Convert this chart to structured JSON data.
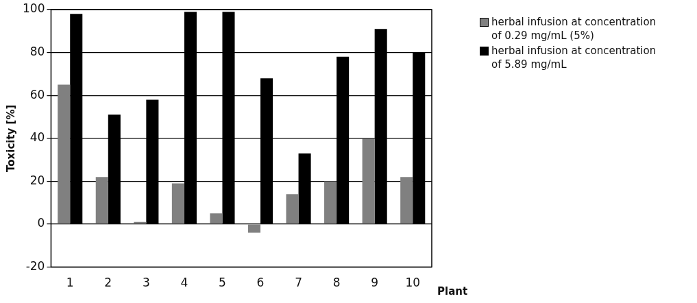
{
  "chart_data": {
    "type": "bar",
    "xlabel": "Plant",
    "ylabel": "Toxicity [%]",
    "categories": [
      "1",
      "2",
      "3",
      "4",
      "5",
      "6",
      "7",
      "8",
      "9",
      "10"
    ],
    "series": [
      {
        "name": "herbal infusion at concentration of 0.29 mg/mL (5%)",
        "color": "#808080",
        "values": [
          65,
          22,
          1,
          19,
          5,
          -4,
          14,
          20,
          40,
          22
        ]
      },
      {
        "name": "herbal infusion at concentration of 5.89 mg/mL",
        "color": "#000000",
        "values": [
          98,
          51,
          58,
          99,
          99,
          68,
          33,
          78,
          91,
          80
        ]
      }
    ],
    "ylim": [
      -20,
      100
    ],
    "yticks": [
      -20,
      0,
      20,
      40,
      60,
      80,
      100
    ],
    "grid": "y",
    "legend": "top right"
  }
}
